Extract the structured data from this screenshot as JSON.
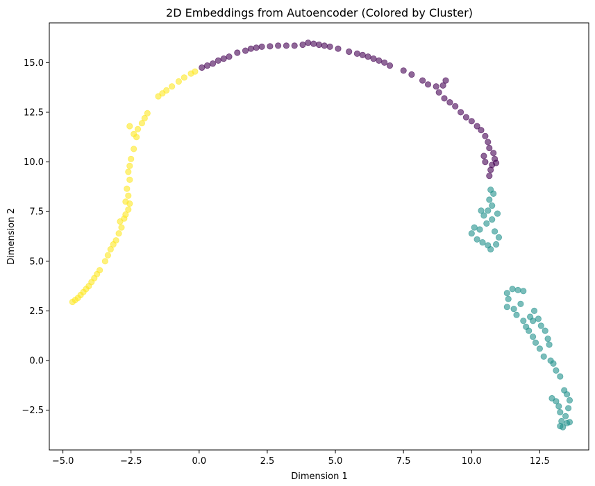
{
  "chart_data": {
    "type": "scatter",
    "title": "2D Embeddings from Autoencoder (Colored by Cluster)",
    "xlabel": "Dimension 1",
    "ylabel": "Dimension 2",
    "xlim": [
      -5.5,
      14.3
    ],
    "ylim": [
      -4.5,
      17.0
    ],
    "xticks": [
      -5.0,
      -2.5,
      0.0,
      2.5,
      5.0,
      7.5,
      10.0,
      12.5
    ],
    "xtick_labels": [
      "−5.0",
      "−2.5",
      "0.0",
      "2.5",
      "5.0",
      "7.5",
      "10.0",
      "12.5"
    ],
    "yticks": [
      -2.5,
      0.0,
      2.5,
      5.0,
      7.5,
      10.0,
      12.5,
      15.0
    ],
    "ytick_labels": [
      "−2.5",
      "0.0",
      "2.5",
      "5.0",
      "7.5",
      "10.0",
      "12.5",
      "15.0"
    ],
    "grid": false,
    "legend": "none",
    "marker_alpha": 0.6,
    "series": [
      {
        "color": "#fde725",
        "points": [
          [
            -4.65,
            2.95
          ],
          [
            -4.55,
            3.05
          ],
          [
            -4.45,
            3.15
          ],
          [
            -4.35,
            3.3
          ],
          [
            -4.25,
            3.45
          ],
          [
            -4.15,
            3.6
          ],
          [
            -4.05,
            3.75
          ],
          [
            -3.95,
            3.95
          ],
          [
            -3.85,
            4.15
          ],
          [
            -3.75,
            4.35
          ],
          [
            -3.65,
            4.55
          ],
          [
            -3.45,
            5.0
          ],
          [
            -3.35,
            5.3
          ],
          [
            -3.25,
            5.6
          ],
          [
            -3.15,
            5.85
          ],
          [
            -3.05,
            6.05
          ],
          [
            -2.95,
            6.4
          ],
          [
            -2.85,
            6.7
          ],
          [
            -2.9,
            7.0
          ],
          [
            -2.75,
            7.15
          ],
          [
            -2.6,
            7.6
          ],
          [
            -2.7,
            7.35
          ],
          [
            -2.55,
            7.9
          ],
          [
            -2.6,
            8.3
          ],
          [
            -2.65,
            8.65
          ],
          [
            -2.55,
            9.1
          ],
          [
            -2.6,
            9.5
          ],
          [
            -2.55,
            9.8
          ],
          [
            -2.5,
            10.15
          ],
          [
            -2.4,
            10.65
          ],
          [
            -2.3,
            11.25
          ],
          [
            -2.25,
            11.65
          ],
          [
            -2.1,
            11.95
          ],
          [
            -2.0,
            12.2
          ],
          [
            -1.9,
            12.45
          ],
          [
            -1.5,
            13.3
          ],
          [
            -1.35,
            13.45
          ],
          [
            -1.2,
            13.6
          ],
          [
            -1.0,
            13.8
          ],
          [
            -0.75,
            14.05
          ],
          [
            -0.55,
            14.25
          ],
          [
            -0.3,
            14.45
          ],
          [
            -0.15,
            14.55
          ],
          [
            -2.55,
            11.8
          ],
          [
            -2.4,
            11.4
          ],
          [
            -2.7,
            8.0
          ]
        ]
      },
      {
        "color": "#440154",
        "points": [
          [
            0.1,
            14.75
          ],
          [
            0.3,
            14.85
          ],
          [
            0.5,
            14.95
          ],
          [
            0.7,
            15.1
          ],
          [
            0.9,
            15.2
          ],
          [
            1.1,
            15.3
          ],
          [
            1.4,
            15.5
          ],
          [
            1.7,
            15.6
          ],
          [
            1.9,
            15.7
          ],
          [
            2.1,
            15.75
          ],
          [
            2.3,
            15.8
          ],
          [
            2.6,
            15.82
          ],
          [
            2.9,
            15.85
          ],
          [
            3.2,
            15.85
          ],
          [
            3.5,
            15.85
          ],
          [
            3.8,
            15.9
          ],
          [
            4.0,
            16.0
          ],
          [
            4.2,
            15.95
          ],
          [
            4.4,
            15.9
          ],
          [
            4.6,
            15.85
          ],
          [
            4.8,
            15.8
          ],
          [
            5.1,
            15.7
          ],
          [
            5.5,
            15.55
          ],
          [
            5.8,
            15.45
          ],
          [
            6.0,
            15.38
          ],
          [
            6.2,
            15.3
          ],
          [
            6.4,
            15.2
          ],
          [
            6.6,
            15.1
          ],
          [
            6.8,
            15.0
          ],
          [
            7.0,
            14.85
          ],
          [
            7.5,
            14.6
          ],
          [
            7.8,
            14.4
          ],
          [
            8.2,
            14.1
          ],
          [
            8.4,
            13.9
          ],
          [
            8.7,
            13.8
          ],
          [
            8.8,
            13.5
          ],
          [
            8.95,
            13.85
          ],
          [
            9.05,
            14.1
          ],
          [
            9.0,
            13.2
          ],
          [
            9.2,
            13.0
          ],
          [
            9.4,
            12.8
          ],
          [
            9.6,
            12.5
          ],
          [
            9.8,
            12.25
          ],
          [
            10.0,
            12.05
          ],
          [
            10.2,
            11.8
          ],
          [
            10.35,
            11.6
          ],
          [
            10.5,
            11.3
          ],
          [
            10.6,
            11.0
          ],
          [
            10.65,
            10.7
          ],
          [
            10.8,
            10.45
          ],
          [
            10.85,
            10.15
          ],
          [
            10.75,
            9.85
          ],
          [
            10.7,
            9.6
          ],
          [
            10.65,
            9.3
          ],
          [
            10.45,
            10.3
          ],
          [
            10.5,
            10.0
          ],
          [
            10.9,
            9.95
          ]
        ]
      },
      {
        "color": "#21918c",
        "points": [
          [
            10.7,
            8.6
          ],
          [
            10.8,
            8.4
          ],
          [
            10.65,
            8.1
          ],
          [
            10.75,
            7.8
          ],
          [
            10.6,
            7.55
          ],
          [
            10.45,
            7.3
          ],
          [
            10.35,
            7.55
          ],
          [
            10.55,
            6.9
          ],
          [
            10.3,
            6.6
          ],
          [
            10.1,
            6.7
          ],
          [
            10.0,
            6.4
          ],
          [
            10.2,
            6.1
          ],
          [
            10.4,
            5.95
          ],
          [
            10.6,
            5.8
          ],
          [
            10.7,
            5.6
          ],
          [
            10.9,
            5.85
          ],
          [
            11.0,
            6.2
          ],
          [
            10.85,
            6.5
          ],
          [
            10.75,
            7.1
          ],
          [
            10.95,
            7.4
          ],
          [
            11.3,
            3.4
          ],
          [
            11.5,
            3.6
          ],
          [
            11.7,
            3.55
          ],
          [
            11.9,
            3.5
          ],
          [
            11.35,
            3.1
          ],
          [
            11.3,
            2.7
          ],
          [
            11.55,
            2.6
          ],
          [
            11.65,
            2.3
          ],
          [
            11.9,
            2.0
          ],
          [
            12.0,
            1.7
          ],
          [
            12.1,
            1.5
          ],
          [
            12.25,
            1.2
          ],
          [
            12.35,
            0.9
          ],
          [
            12.15,
            2.2
          ],
          [
            12.3,
            2.5
          ],
          [
            12.45,
            2.1
          ],
          [
            12.55,
            1.75
          ],
          [
            12.7,
            1.5
          ],
          [
            12.8,
            1.1
          ],
          [
            12.85,
            0.8
          ],
          [
            12.5,
            0.6
          ],
          [
            12.65,
            0.2
          ],
          [
            12.9,
            0.0
          ],
          [
            13.0,
            -0.15
          ],
          [
            13.1,
            -0.5
          ],
          [
            13.25,
            -0.8
          ],
          [
            12.95,
            -1.9
          ],
          [
            13.1,
            -2.05
          ],
          [
            13.2,
            -2.3
          ],
          [
            13.25,
            -2.6
          ],
          [
            13.4,
            -1.5
          ],
          [
            13.5,
            -1.7
          ],
          [
            13.6,
            -2.0
          ],
          [
            13.55,
            -2.4
          ],
          [
            13.45,
            -2.8
          ],
          [
            13.3,
            -3.05
          ],
          [
            13.25,
            -3.3
          ],
          [
            13.35,
            -3.35
          ],
          [
            13.5,
            -3.15
          ],
          [
            13.6,
            -3.1
          ],
          [
            12.25,
            2.0
          ],
          [
            11.8,
            2.85
          ]
        ]
      }
    ]
  }
}
